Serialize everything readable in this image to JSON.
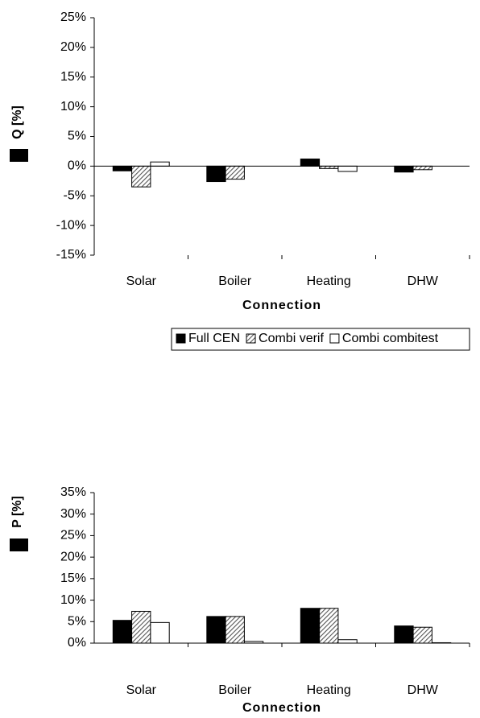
{
  "chart_data": [
    {
      "type": "bar",
      "y_label": "Q [%]",
      "x_label": "Connection",
      "categories": [
        "Solar",
        "Boiler",
        "Heating",
        "DHW"
      ],
      "series": [
        {
          "name": "Full CEN",
          "color": "#000000",
          "values": [
            -0.8,
            -2.6,
            1.2,
            -1.0
          ]
        },
        {
          "name": "Combi verif",
          "color": "#555555",
          "hatch": true,
          "values": [
            -3.5,
            -2.2,
            -0.4,
            -0.6
          ]
        },
        {
          "name": "Combi combitest",
          "color": "#ffffff",
          "values": [
            0.7,
            0,
            -0.9,
            0
          ]
        }
      ],
      "ylim": [
        -15,
        25
      ],
      "yticks": [
        {
          "value": -15,
          "label": "-15%"
        },
        {
          "value": -10,
          "label": "-10%"
        },
        {
          "value": -5,
          "label": "-5%"
        },
        {
          "value": 0,
          "label": "0%"
        },
        {
          "value": 5,
          "label": "5%"
        },
        {
          "value": 10,
          "label": "10%"
        },
        {
          "value": 15,
          "label": "15%"
        },
        {
          "value": 20,
          "label": "20%"
        },
        {
          "value": 25,
          "label": "25%"
        }
      ],
      "legend": "bottom"
    },
    {
      "type": "bar",
      "y_label": "P [%]",
      "x_label": "Connection",
      "categories": [
        "Solar",
        "Boiler",
        "Heating",
        "DHW"
      ],
      "series": [
        {
          "color": "#000000",
          "values": [
            5.3,
            6.2,
            8.1,
            4.0
          ]
        },
        {
          "color": "#555555",
          "hatch": true,
          "values": [
            7.4,
            6.2,
            8.1,
            3.7
          ]
        },
        {
          "color": "#ffffff",
          "values": [
            4.8,
            0.4,
            0.8,
            0.1
          ]
        }
      ],
      "ylim": [
        0,
        35
      ],
      "yticks": [
        {
          "value": 0,
          "label": "0%"
        },
        {
          "value": 5,
          "label": "5%"
        },
        {
          "value": 10,
          "label": "10%"
        },
        {
          "value": 15,
          "label": "15%"
        },
        {
          "value": 20,
          "label": "20%"
        },
        {
          "value": 25,
          "label": "25%"
        },
        {
          "value": 30,
          "label": "30%"
        },
        {
          "value": 35,
          "label": "35%"
        }
      ]
    }
  ]
}
